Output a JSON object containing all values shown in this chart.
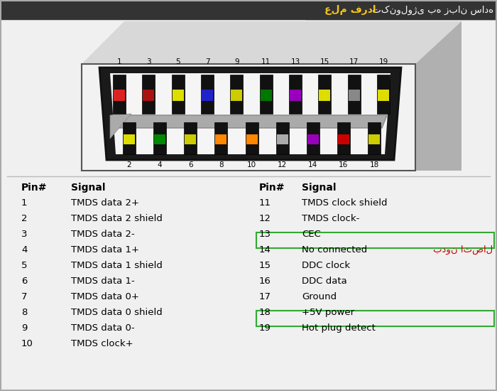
{
  "background_color": "#f0f0f0",
  "header_bg": "#333333",
  "header_text_normal": " تکنولوژی به زبان ساده",
  "header_text_bold": "علم فردا",
  "header_bold_color": "#f5c518",
  "pin_numbers_top": [
    "1",
    "3",
    "5",
    "7",
    "9",
    "11",
    "13",
    "15",
    "17",
    "19"
  ],
  "pin_numbers_bottom": [
    "2",
    "4",
    "6",
    "8",
    "10",
    "12",
    "14",
    "16",
    "18"
  ],
  "top_row_colors": [
    "#dd2222",
    "#aa1111",
    "#dddd00",
    "#2222cc",
    "#cccc00",
    "#007700",
    "#9900bb",
    "#dddd00",
    "#888888",
    "#dddd00"
  ],
  "bottom_row_colors": [
    "#dddd00",
    "#008800",
    "#cccc00",
    "#ff8800",
    "#ff8800",
    "#aaaaaa",
    "#9900bb",
    "#cc0000",
    "#cccc00"
  ],
  "table_left_pins": [
    "1",
    "2",
    "3",
    "4",
    "5",
    "6",
    "7",
    "8",
    "9",
    "10"
  ],
  "table_left_signals": [
    "TMDS data 2+",
    "TMDS data 2 shield",
    "TMDS data 2-",
    "TMDS data 1+",
    "TMDS data 1 shield",
    "TMDS data 1-",
    "TMDS data 0+",
    "TMDS data 0 shield",
    "TMDS data 0-",
    "TMDS clock+"
  ],
  "table_right_pins": [
    "11",
    "12",
    "13",
    "14",
    "15",
    "16",
    "17",
    "18",
    "19"
  ],
  "table_right_signals": [
    "TMDS clock shield",
    "TMDS clock-",
    "CEC",
    "No connected",
    "DDC clock",
    "DDC data",
    "Ground",
    "+5V power",
    "Hot plug detect"
  ],
  "highlight_color": "#33aa33",
  "highlight_pin_indices": [
    3,
    8
  ],
  "persian_note": "بدون اتصال",
  "persian_note_color": "#cc0000"
}
